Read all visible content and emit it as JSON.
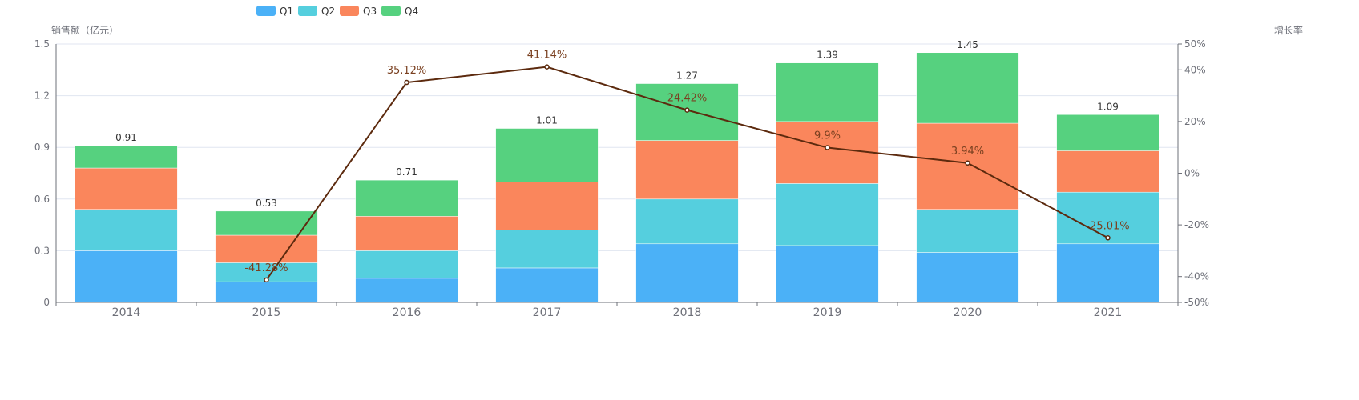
{
  "chart_data": {
    "type": "bar+line",
    "stacked": true,
    "categories": [
      "2014",
      "2015",
      "2016",
      "2017",
      "2018",
      "2019",
      "2020",
      "2021"
    ],
    "series": [
      {
        "name": "Q1",
        "color": "#4bb1f7",
        "values": [
          0.3,
          0.12,
          0.14,
          0.2,
          0.34,
          0.33,
          0.29,
          0.34
        ]
      },
      {
        "name": "Q2",
        "color": "#55cfde",
        "values": [
          0.24,
          0.11,
          0.16,
          0.22,
          0.26,
          0.36,
          0.25,
          0.3
        ]
      },
      {
        "name": "Q3",
        "color": "#fa865c",
        "values": [
          0.24,
          0.16,
          0.2,
          0.28,
          0.34,
          0.36,
          0.5,
          0.24
        ]
      },
      {
        "name": "Q4",
        "color": "#56d17f",
        "values": [
          0.13,
          0.14,
          0.21,
          0.31,
          0.33,
          0.34,
          0.41,
          0.21
        ]
      }
    ],
    "totals": [
      0.91,
      0.53,
      0.71,
      1.01,
      1.27,
      1.39,
      1.45,
      1.09
    ],
    "total_labels": [
      "0.91",
      "0.53",
      "0.71",
      "1.01",
      "1.27",
      "1.39",
      "1.45",
      "1.09"
    ],
    "growth": {
      "name": "增长率",
      "color": "#5c2a0e",
      "values": [
        null,
        -41.28,
        35.12,
        41.14,
        24.42,
        9.9,
        3.94,
        -25.01
      ],
      "labels": [
        "",
        "-41.28%",
        "35.12%",
        "41.14%",
        "24.42%",
        "9.9%",
        "3.94%",
        "-25.01%"
      ]
    },
    "y_left": {
      "name": "销售额（亿元）",
      "min": 0,
      "max": 1.5,
      "ticks": [
        0,
        0.3,
        0.6,
        0.9,
        1.2,
        1.5
      ],
      "tick_labels": [
        "0",
        "0.3",
        "0.6",
        "0.9",
        "1.2",
        "1.5"
      ]
    },
    "y_right": {
      "name": "增长率",
      "min": -50,
      "max": 50,
      "ticks": [
        -50,
        -40,
        -20,
        0,
        20,
        40,
        50
      ],
      "tick_labels": [
        "-50%",
        "-40%",
        "-20%",
        "0%",
        "20%",
        "40%",
        "50%"
      ]
    },
    "legend": [
      "Q1",
      "Q2",
      "Q3",
      "Q4"
    ],
    "legend_position": "top-left",
    "grid": true
  }
}
